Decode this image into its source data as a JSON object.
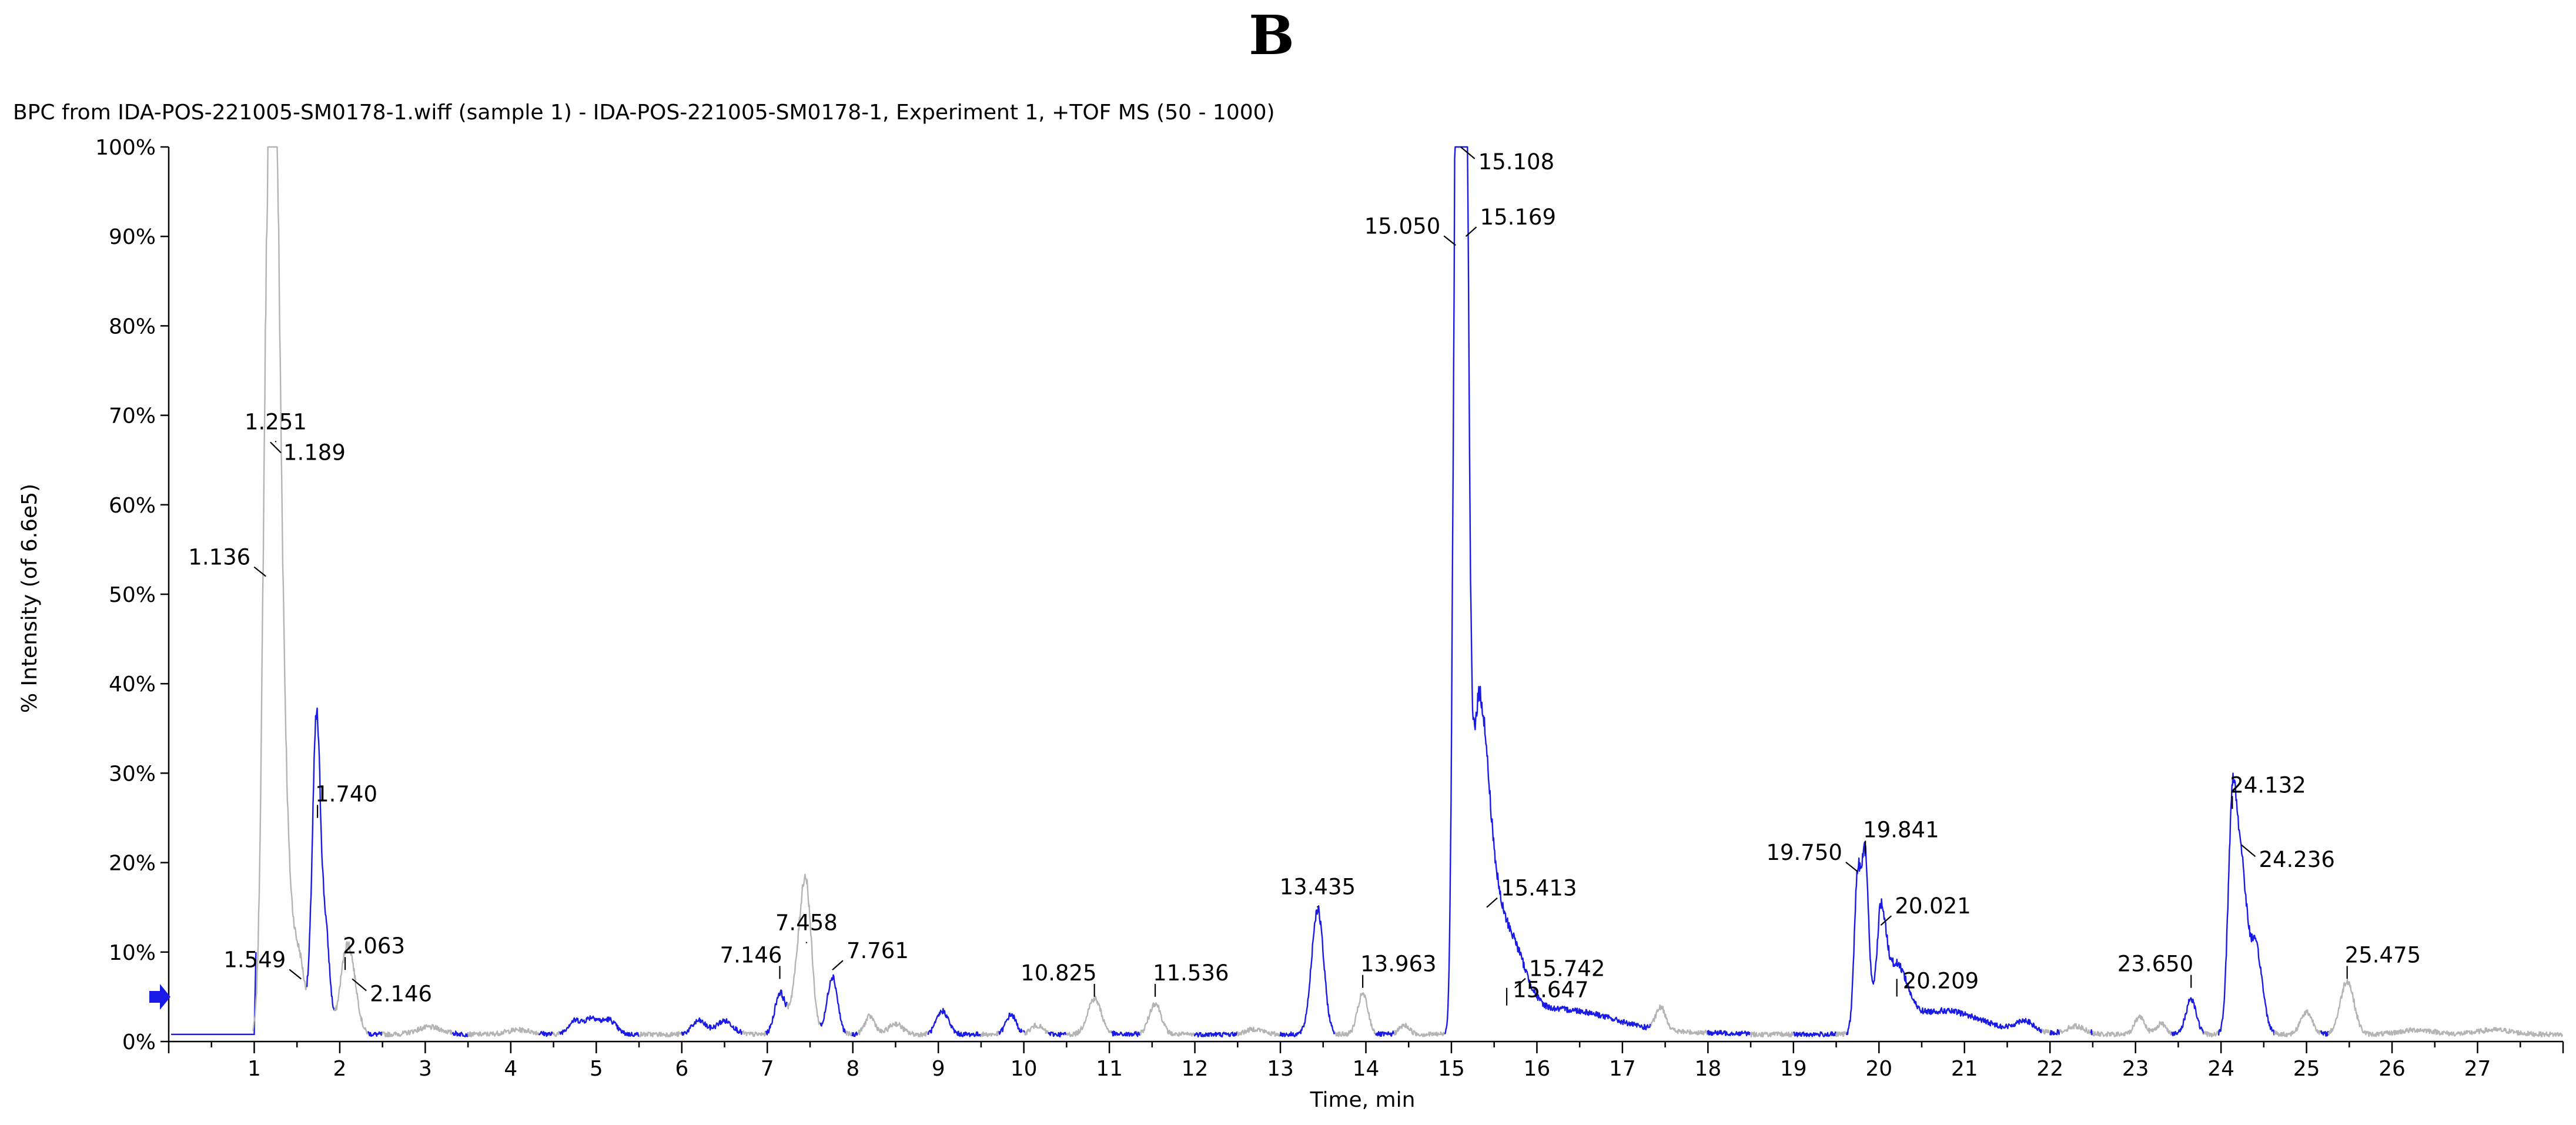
{
  "panel_label": "B",
  "chart_data": {
    "type": "line",
    "title": "BPC from IDA-POS-221005-SM0178-1.wiff (sample 1) - IDA-POS-221005-SM0178-1, Experiment 1, +TOF MS (50 - 1000)",
    "xlabel": "Time, min",
    "ylabel": "% Intensity (of 6.6e5)",
    "xlim": [
      0,
      28
    ],
    "ylim": [
      0,
      100
    ],
    "x_ticks": [
      1,
      2,
      3,
      4,
      5,
      6,
      7,
      8,
      9,
      10,
      11,
      12,
      13,
      14,
      15,
      16,
      17,
      18,
      19,
      20,
      21,
      22,
      23,
      24,
      25,
      26,
      27
    ],
    "y_ticks": [
      {
        "value": 0,
        "label": "0%"
      },
      {
        "value": 10,
        "label": "10%"
      },
      {
        "value": 20,
        "label": "20%"
      },
      {
        "value": 30,
        "label": "30%"
      },
      {
        "value": 40,
        "label": "40%"
      },
      {
        "value": 50,
        "label": "50%"
      },
      {
        "value": 60,
        "label": "60%"
      },
      {
        "value": 70,
        "label": "70%"
      },
      {
        "value": 80,
        "label": "80%"
      },
      {
        "value": 90,
        "label": "90%"
      },
      {
        "value": 100,
        "label": "100%"
      }
    ],
    "colors": {
      "blue": "#1a1ae6",
      "gray": "#b4b4b4"
    },
    "baseline": 0.8,
    "peaks": [
      {
        "x": 1.136,
        "y": 48,
        "w": 0.05,
        "c": "gray"
      },
      {
        "x": 1.189,
        "y": 56,
        "w": 0.05,
        "c": "gray"
      },
      {
        "x": 1.251,
        "y": 66,
        "w": 0.045,
        "c": "gray"
      },
      {
        "x": 1.32,
        "y": 36,
        "w": 0.05,
        "c": "gray"
      },
      {
        "x": 1.42,
        "y": 13,
        "w": 0.07,
        "c": "gray"
      },
      {
        "x": 1.549,
        "y": 6,
        "w": 0.05,
        "c": "gray"
      },
      {
        "x": 1.7,
        "y": 16,
        "w": 0.045,
        "c": "blue"
      },
      {
        "x": 1.74,
        "y": 22,
        "w": 0.04,
        "c": "blue"
      },
      {
        "x": 1.83,
        "y": 12,
        "w": 0.05,
        "c": "blue"
      },
      {
        "x": 2.063,
        "y": 7,
        "w": 0.07,
        "c": "gray"
      },
      {
        "x": 2.146,
        "y": 5,
        "w": 0.07,
        "c": "gray"
      },
      {
        "x": 3.05,
        "y": 0.8,
        "w": 0.15,
        "c": "gray"
      },
      {
        "x": 4.1,
        "y": 0.5,
        "w": 0.15,
        "c": "gray"
      },
      {
        "x": 4.75,
        "y": 1.5,
        "w": 0.08,
        "c": "blue"
      },
      {
        "x": 4.95,
        "y": 1.8,
        "w": 0.08,
        "c": "blue"
      },
      {
        "x": 5.15,
        "y": 1.6,
        "w": 0.08,
        "c": "blue"
      },
      {
        "x": 6.2,
        "y": 1.5,
        "w": 0.08,
        "c": "blue"
      },
      {
        "x": 6.5,
        "y": 1.5,
        "w": 0.1,
        "c": "blue"
      },
      {
        "x": 7.146,
        "y": 4.5,
        "w": 0.06,
        "c": "blue"
      },
      {
        "x": 7.4,
        "y": 9,
        "w": 0.09,
        "c": "gray"
      },
      {
        "x": 7.458,
        "y": 10,
        "w": 0.06,
        "c": "gray"
      },
      {
        "x": 7.761,
        "y": 6.5,
        "w": 0.06,
        "c": "blue"
      },
      {
        "x": 8.2,
        "y": 2,
        "w": 0.06,
        "c": "gray"
      },
      {
        "x": 8.5,
        "y": 1.2,
        "w": 0.08,
        "c": "gray"
      },
      {
        "x": 9.05,
        "y": 2.6,
        "w": 0.07,
        "c": "blue"
      },
      {
        "x": 9.85,
        "y": 2.2,
        "w": 0.06,
        "c": "blue"
      },
      {
        "x": 10.15,
        "y": 1,
        "w": 0.07,
        "c": "gray"
      },
      {
        "x": 10.825,
        "y": 4,
        "w": 0.08,
        "c": "gray"
      },
      {
        "x": 11.536,
        "y": 3.5,
        "w": 0.07,
        "c": "gray"
      },
      {
        "x": 12.7,
        "y": 0.6,
        "w": 0.1,
        "c": "gray"
      },
      {
        "x": 13.435,
        "y": 14,
        "w": 0.07,
        "c": "blue"
      },
      {
        "x": 13.963,
        "y": 4.5,
        "w": 0.06,
        "c": "gray"
      },
      {
        "x": 14.45,
        "y": 1,
        "w": 0.06,
        "c": "gray"
      },
      {
        "x": 15.05,
        "y": 86,
        "w": 0.035,
        "c": "blue"
      },
      {
        "x": 15.108,
        "y": 97,
        "w": 0.035,
        "c": "blue"
      },
      {
        "x": 15.169,
        "y": 88,
        "w": 0.035,
        "c": "blue"
      },
      {
        "x": 15.3,
        "y": 25,
        "w": 0.1,
        "c": "blue"
      },
      {
        "x": 15.413,
        "y": 14,
        "w": 0.12,
        "c": "blue"
      },
      {
        "x": 15.647,
        "y": 5,
        "w": 0.15,
        "c": "blue"
      },
      {
        "x": 15.742,
        "y": 4,
        "w": 0.18,
        "c": "blue"
      },
      {
        "x": 16.4,
        "y": 2,
        "w": 0.5,
        "c": "blue"
      },
      {
        "x": 17.45,
        "y": 2.5,
        "w": 0.06,
        "c": "gray"
      },
      {
        "x": 19.75,
        "y": 17,
        "w": 0.04,
        "c": "blue"
      },
      {
        "x": 19.841,
        "y": 19,
        "w": 0.04,
        "c": "blue"
      },
      {
        "x": 20.021,
        "y": 11,
        "w": 0.06,
        "c": "blue"
      },
      {
        "x": 20.209,
        "y": 6,
        "w": 0.12,
        "c": "blue"
      },
      {
        "x": 20.8,
        "y": 2,
        "w": 0.4,
        "c": "blue"
      },
      {
        "x": 21.7,
        "y": 1.2,
        "w": 0.1,
        "c": "blue"
      },
      {
        "x": 22.3,
        "y": 0.8,
        "w": 0.1,
        "c": "gray"
      },
      {
        "x": 23.05,
        "y": 2,
        "w": 0.06,
        "c": "gray"
      },
      {
        "x": 23.3,
        "y": 1.2,
        "w": 0.06,
        "c": "gray"
      },
      {
        "x": 23.65,
        "y": 4,
        "w": 0.06,
        "c": "blue"
      },
      {
        "x": 24.132,
        "y": 24,
        "w": 0.05,
        "c": "blue"
      },
      {
        "x": 24.236,
        "y": 17,
        "w": 0.06,
        "c": "blue"
      },
      {
        "x": 24.4,
        "y": 10,
        "w": 0.08,
        "c": "blue"
      },
      {
        "x": 25.0,
        "y": 2.5,
        "w": 0.07,
        "c": "gray"
      },
      {
        "x": 25.475,
        "y": 6,
        "w": 0.08,
        "c": "gray"
      },
      {
        "x": 26.3,
        "y": 0.5,
        "w": 0.2,
        "c": "gray"
      },
      {
        "x": 27.2,
        "y": 0.5,
        "w": 0.2,
        "c": "gray"
      }
    ],
    "peak_labels": [
      {
        "label": "1.251",
        "x": 1.251,
        "y": 67,
        "pos": "above"
      },
      {
        "label": "1.189",
        "x": 1.189,
        "y": 67,
        "pos": "right",
        "dy": 4
      },
      {
        "label": "1.136",
        "x": 1.136,
        "y": 52,
        "pos": "left-up"
      },
      {
        "label": "1.740",
        "x": 1.74,
        "y": 25,
        "pos": "above-right"
      },
      {
        "label": "1.549",
        "x": 1.549,
        "y": 7,
        "pos": "left-up"
      },
      {
        "label": "2.063",
        "x": 2.063,
        "y": 8,
        "pos": "above-right"
      },
      {
        "label": "2.146",
        "x": 2.146,
        "y": 7,
        "pos": "right-down"
      },
      {
        "label": "7.146",
        "x": 7.146,
        "y": 7,
        "pos": "above-left"
      },
      {
        "label": "7.458",
        "x": 7.458,
        "y": 11,
        "pos": "above"
      },
      {
        "label": "7.761",
        "x": 7.761,
        "y": 8,
        "pos": "right-up"
      },
      {
        "label": "10.825",
        "x": 10.825,
        "y": 5,
        "pos": "above-left"
      },
      {
        "label": "11.536",
        "x": 11.536,
        "y": 5,
        "pos": "above-right"
      },
      {
        "label": "13.435",
        "x": 13.435,
        "y": 15,
        "pos": "above"
      },
      {
        "label": "13.963",
        "x": 13.963,
        "y": 6,
        "pos": "above-right"
      },
      {
        "label": "15.050",
        "x": 15.05,
        "y": 89,
        "pos": "left-up"
      },
      {
        "label": "15.108",
        "x": 15.108,
        "y": 100,
        "pos": "right-down"
      },
      {
        "label": "15.169",
        "x": 15.169,
        "y": 90,
        "pos": "right-up"
      },
      {
        "label": "15.413",
        "x": 15.413,
        "y": 15,
        "pos": "right-up"
      },
      {
        "label": "15.742",
        "x": 15.742,
        "y": 6,
        "pos": "right-up"
      },
      {
        "label": "15.647",
        "x": 15.647,
        "y": 6,
        "pos": "right-mid"
      },
      {
        "label": "19.750",
        "x": 19.75,
        "y": 19,
        "pos": "left-up"
      },
      {
        "label": "19.841",
        "x": 19.841,
        "y": 21,
        "pos": "above-right"
      },
      {
        "label": "20.021",
        "x": 20.021,
        "y": 13,
        "pos": "right-up"
      },
      {
        "label": "20.209",
        "x": 20.209,
        "y": 7,
        "pos": "right-mid"
      },
      {
        "label": "23.650",
        "x": 23.65,
        "y": 6,
        "pos": "above-left"
      },
      {
        "label": "24.132",
        "x": 24.132,
        "y": 26,
        "pos": "above-right"
      },
      {
        "label": "24.236",
        "x": 24.236,
        "y": 22,
        "pos": "right-down"
      },
      {
        "label": "25.475",
        "x": 25.475,
        "y": 7,
        "pos": "above-right"
      }
    ]
  }
}
